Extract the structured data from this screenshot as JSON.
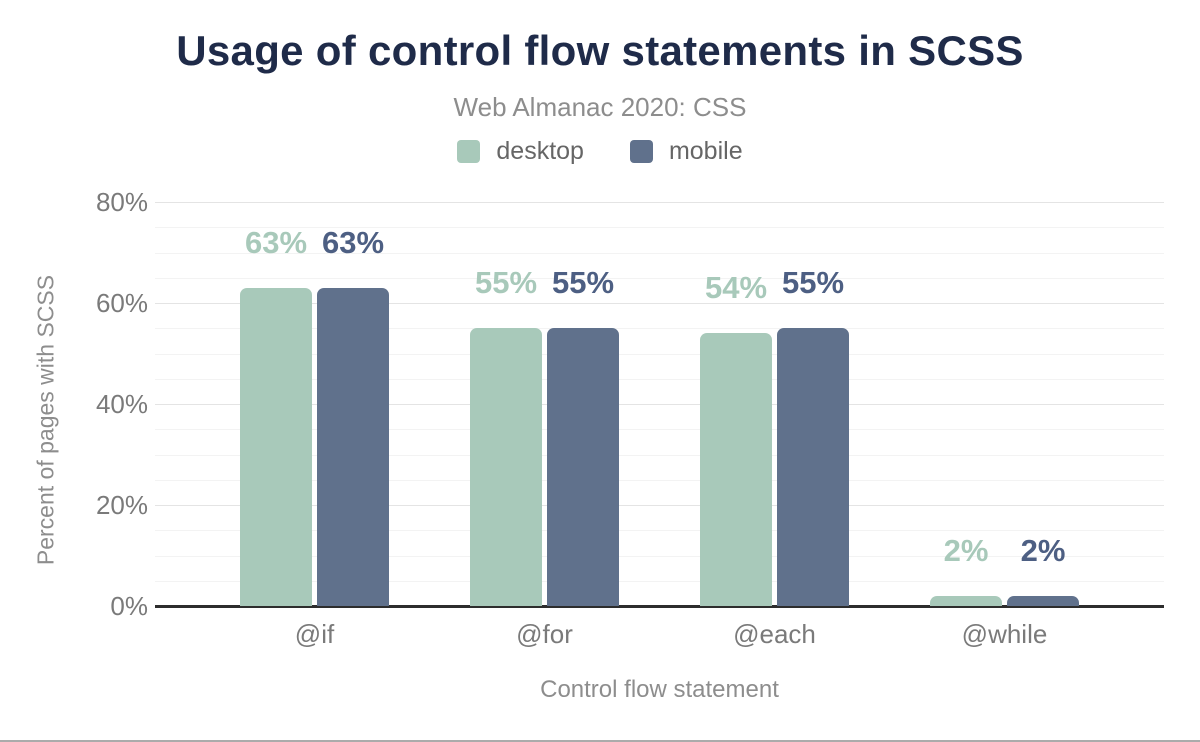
{
  "chart_data": {
    "type": "bar",
    "title": "Usage of control flow statements in SCSS",
    "subtitle": "Web Almanac 2020: CSS",
    "categories": [
      "@if",
      "@for",
      "@each",
      "@while"
    ],
    "series": [
      {
        "name": "desktop",
        "color": "#a8c9ba",
        "label_color": "#a8c9ba",
        "values": [
          63,
          55,
          54,
          2
        ]
      },
      {
        "name": "mobile",
        "color": "#60718c",
        "label_color": "#4d5f83",
        "values": [
          63,
          55,
          55,
          2
        ]
      }
    ],
    "value_labels": [
      [
        "63%",
        "55%",
        "54%",
        "2%"
      ],
      [
        "63%",
        "55%",
        "55%",
        "2%"
      ]
    ],
    "tick_labels": [
      "0%",
      "20%",
      "40%",
      "60%",
      "80%"
    ],
    "xlabel": "Control flow statement",
    "ylabel": "Percent of pages with SCSS",
    "ylim": [
      0,
      80
    ],
    "y_major_ticks": [
      0,
      20,
      40,
      60,
      80
    ],
    "y_minor_step": 5,
    "grid": "horizontal, major and minor lines",
    "legend_position": "top center"
  }
}
